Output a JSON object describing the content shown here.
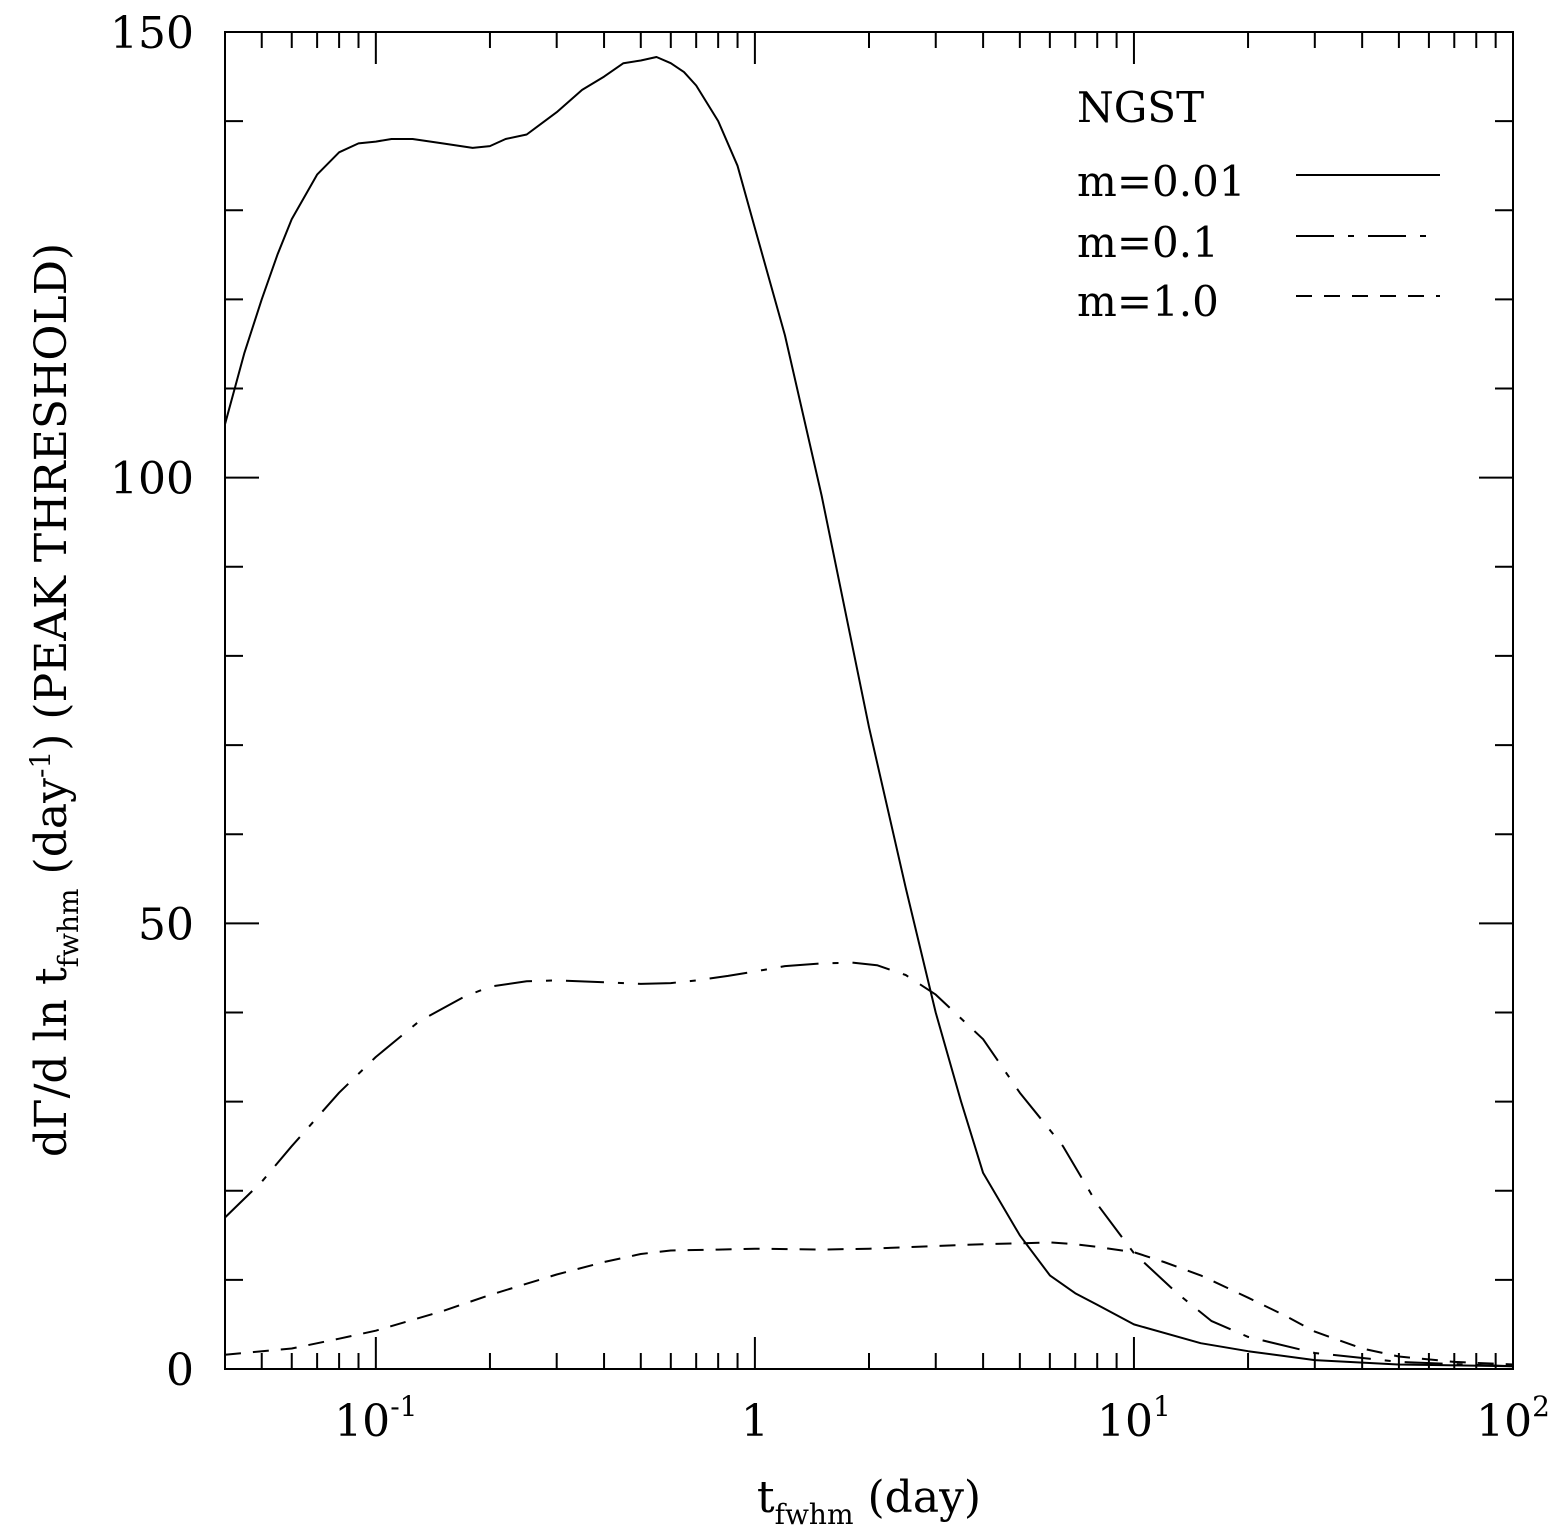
{
  "chart_data": {
    "type": "line",
    "title": "",
    "xlabel": {
      "main": "t",
      "sub": "fwhm",
      "rest": " (day)"
    },
    "ylabel": {
      "main": "dΓ/d ln t",
      "sub": "fwhm",
      "mid": " (day",
      "sup": "-1",
      "rest": ")  (PEAK THRESHOLD)"
    },
    "xscale": "log",
    "xlim": [
      0.04,
      100
    ],
    "ylim": [
      0,
      150
    ],
    "xticks": [
      {
        "value": 0.1,
        "base": "10",
        "exp": "-1"
      },
      {
        "value": 1,
        "base": "1",
        "exp": ""
      },
      {
        "value": 10,
        "base": "10",
        "exp": "1"
      },
      {
        "value": 100,
        "base": "10",
        "exp": "2"
      }
    ],
    "yticks": [
      {
        "value": 0,
        "label": "0"
      },
      {
        "value": 50,
        "label": "50"
      },
      {
        "value": 100,
        "label": "100"
      },
      {
        "value": 150,
        "label": "150"
      }
    ],
    "annotation": "NGST",
    "legend_position": "top-right",
    "series": [
      {
        "name": "m=0.01",
        "style": "solid",
        "points": [
          [
            0.04,
            106
          ],
          [
            0.045,
            114
          ],
          [
            0.05,
            120
          ],
          [
            0.055,
            125
          ],
          [
            0.06,
            129
          ],
          [
            0.07,
            134
          ],
          [
            0.08,
            136.5
          ],
          [
            0.09,
            137.5
          ],
          [
            0.1,
            137.7
          ],
          [
            0.11,
            138
          ],
          [
            0.125,
            138
          ],
          [
            0.15,
            137.5
          ],
          [
            0.18,
            137
          ],
          [
            0.2,
            137.2
          ],
          [
            0.22,
            138
          ],
          [
            0.25,
            138.5
          ],
          [
            0.3,
            141
          ],
          [
            0.35,
            143.5
          ],
          [
            0.4,
            145
          ],
          [
            0.45,
            146.5
          ],
          [
            0.5,
            146.8
          ],
          [
            0.55,
            147.2
          ],
          [
            0.6,
            146.5
          ],
          [
            0.65,
            145.5
          ],
          [
            0.7,
            144
          ],
          [
            0.8,
            140
          ],
          [
            0.9,
            135
          ],
          [
            1.0,
            128
          ],
          [
            1.2,
            116
          ],
          [
            1.5,
            98
          ],
          [
            2.0,
            72
          ],
          [
            2.5,
            54
          ],
          [
            3.0,
            40
          ],
          [
            3.5,
            30
          ],
          [
            4.0,
            22
          ],
          [
            5.0,
            15
          ],
          [
            6.0,
            10.5
          ],
          [
            7.0,
            8.5
          ],
          [
            8.0,
            7.2
          ],
          [
            10.0,
            5
          ],
          [
            15.0,
            2.9
          ],
          [
            20.0,
            2
          ],
          [
            30.0,
            1
          ],
          [
            50.0,
            0.5
          ],
          [
            100.0,
            0.3
          ]
        ]
      },
      {
        "name": "m=0.1",
        "style": "long-dash",
        "points": [
          [
            0.04,
            17
          ],
          [
            0.05,
            21
          ],
          [
            0.06,
            25
          ],
          [
            0.08,
            31
          ],
          [
            0.1,
            35
          ],
          [
            0.13,
            39
          ],
          [
            0.17,
            41.7
          ],
          [
            0.2,
            42.9
          ],
          [
            0.25,
            43.5
          ],
          [
            0.3,
            43.6
          ],
          [
            0.4,
            43.4
          ],
          [
            0.5,
            43.2
          ],
          [
            0.6,
            43.3
          ],
          [
            0.7,
            43.6
          ],
          [
            0.85,
            44.1
          ],
          [
            1.0,
            44.6
          ],
          [
            1.2,
            45.2
          ],
          [
            1.5,
            45.5
          ],
          [
            1.8,
            45.6
          ],
          [
            2.1,
            45.3
          ],
          [
            2.5,
            44.2
          ],
          [
            3.0,
            42
          ],
          [
            4.0,
            37
          ],
          [
            5.0,
            31
          ],
          [
            6.5,
            25
          ],
          [
            8.0,
            18.5
          ],
          [
            10.0,
            13
          ],
          [
            13.0,
            8.5
          ],
          [
            16.0,
            5.4
          ],
          [
            20.0,
            3.6
          ],
          [
            30.0,
            1.8
          ],
          [
            50.0,
            0.8
          ],
          [
            100.0,
            0.3
          ]
        ]
      },
      {
        "name": "m=1.0",
        "style": "short-dash",
        "points": [
          [
            0.04,
            1.6
          ],
          [
            0.06,
            2.3
          ],
          [
            0.08,
            3.4
          ],
          [
            0.1,
            4.3
          ],
          [
            0.15,
            6.5
          ],
          [
            0.2,
            8.3
          ],
          [
            0.3,
            10.6
          ],
          [
            0.4,
            12
          ],
          [
            0.5,
            12.9
          ],
          [
            0.6,
            13.3
          ],
          [
            0.8,
            13.4
          ],
          [
            1.0,
            13.5
          ],
          [
            1.5,
            13.4
          ],
          [
            2.0,
            13.5
          ],
          [
            3.0,
            13.8
          ],
          [
            4.0,
            14
          ],
          [
            5.0,
            14.1
          ],
          [
            6.0,
            14.2
          ],
          [
            7.0,
            14
          ],
          [
            8.0,
            13.7
          ],
          [
            10.0,
            13.1
          ],
          [
            12.0,
            12
          ],
          [
            15.0,
            10.5
          ],
          [
            20.0,
            8
          ],
          [
            25.0,
            6
          ],
          [
            30.0,
            4.2
          ],
          [
            40.0,
            2.3
          ],
          [
            50.0,
            1.4
          ],
          [
            70.0,
            0.8
          ],
          [
            100.0,
            0.5
          ]
        ]
      }
    ]
  }
}
